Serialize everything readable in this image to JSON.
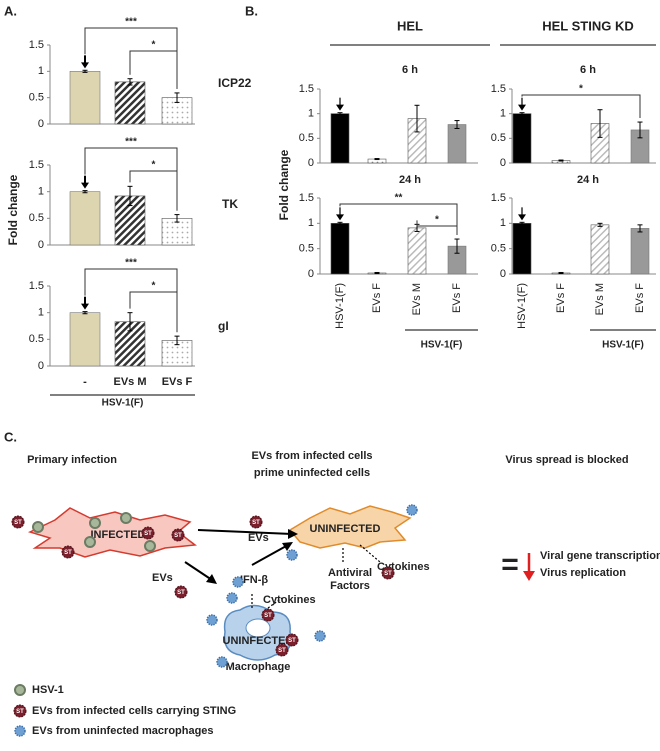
{
  "panel_labels": [
    "A.",
    "B.",
    "C."
  ],
  "column_titles": [
    "HEL",
    "HEL STING KD"
  ],
  "chart_data": [
    {
      "type": "bar",
      "side_label": "ICP22",
      "categories": [
        null,
        null,
        null
      ],
      "values": [
        1,
        0.8,
        0.5
      ],
      "errors": [
        0.02,
        0.06,
        0.09
      ],
      "colors": [
        "#ddd5b0",
        "#333333",
        "#aaaaaa"
      ],
      "fills": [
        "solid",
        "hatch",
        "dots"
      ],
      "ylim": [
        0,
        1.5
      ],
      "yticks": [
        0,
        0.5,
        1,
        1.5
      ],
      "brackets": [
        "***",
        "*"
      ]
    },
    {
      "type": "bar",
      "side_label": "TK",
      "ylabel": "Fold change",
      "categories": [
        null,
        null,
        null
      ],
      "values": [
        1,
        0.92,
        0.5
      ],
      "errors": [
        0.02,
        0.18,
        0.07
      ],
      "colors": [
        "#ddd5b0",
        "#333333",
        "#aaaaaa"
      ],
      "fills": [
        "solid",
        "hatch",
        "dots"
      ],
      "ylim": [
        0,
        1.5
      ],
      "yticks": [
        0,
        0.5,
        1,
        1.5
      ],
      "brackets": [
        "***",
        "*"
      ]
    },
    {
      "type": "bar",
      "side_label": "gI",
      "xlabel": "HSV-1(F)",
      "categories": [
        "-",
        "EVs M",
        "EVs F"
      ],
      "values": [
        1,
        0.83,
        0.48
      ],
      "errors": [
        0.02,
        0.17,
        0.08
      ],
      "colors": [
        "#ddd5b0",
        "#333333",
        "#aaaaaa"
      ],
      "fills": [
        "solid",
        "hatch",
        "dots"
      ],
      "ylim": [
        0,
        1.5
      ],
      "yticks": [
        0,
        0.5,
        1,
        1.5
      ],
      "brackets": [
        "***",
        "*"
      ]
    },
    {
      "type": "bar",
      "title": "6 h",
      "categories": [
        null,
        null,
        null,
        null
      ],
      "values": [
        1,
        0.08,
        0.9,
        0.78
      ],
      "errors": [
        0.02,
        0.01,
        0.27,
        0.08
      ],
      "colors": [
        "#000000",
        "#888888",
        "#bbbbbb",
        "#999999"
      ],
      "fills": [
        "solid",
        "dots",
        "hatch-light",
        "solid"
      ],
      "ylim": [
        0,
        1.5
      ],
      "yticks": [
        0,
        0.5,
        1,
        1.5
      ]
    },
    {
      "type": "bar",
      "title": "6 h",
      "categories": [
        null,
        null,
        null,
        null
      ],
      "values": [
        1,
        0.05,
        0.8,
        0.67
      ],
      "errors": [
        0.02,
        0.01,
        0.28,
        0.16
      ],
      "colors": [
        "#000000",
        "#888888",
        "#bbbbbb",
        "#999999"
      ],
      "fills": [
        "solid",
        "dots",
        "hatch-light",
        "solid"
      ],
      "ylim": [
        0,
        1.5
      ],
      "yticks": [
        0,
        0.5,
        1,
        1.5
      ],
      "brackets": [
        "*"
      ]
    },
    {
      "type": "bar",
      "title": "24 h",
      "ylabel": "Fold change",
      "xlabel": "HSV-1(F)",
      "categories": [
        "HSV-1(F)",
        "EVs F",
        "EVs M",
        "EVs F"
      ],
      "values": [
        1,
        0.02,
        0.91,
        0.55
      ],
      "errors": [
        0.02,
        0.01,
        0.07,
        0.14
      ],
      "colors": [
        "#000000",
        "#888888",
        "#bbbbbb",
        "#999999"
      ],
      "fills": [
        "solid",
        "dots",
        "hatch-light",
        "solid"
      ],
      "ylim": [
        0,
        1.5
      ],
      "yticks": [
        0,
        0.5,
        1,
        1.5
      ],
      "brackets": [
        "**",
        "*"
      ]
    },
    {
      "type": "bar",
      "title": "24 h",
      "xlabel": "HSV-1(F)",
      "categories": [
        "HSV-1(F)",
        "EVs F",
        "EVs M",
        "EVs F"
      ],
      "values": [
        1,
        0.02,
        0.97,
        0.9
      ],
      "errors": [
        0.02,
        0.01,
        0.03,
        0.07
      ],
      "colors": [
        "#000000",
        "#888888",
        "#bbbbbb",
        "#999999"
      ],
      "fills": [
        "solid",
        "dots",
        "hatch-light",
        "solid"
      ],
      "ylim": [
        0,
        1.5
      ],
      "yticks": [
        0,
        0.5,
        1,
        1.5
      ]
    }
  ],
  "diagram": {
    "headings": [
      "Primary infection",
      "EVs from infected cells",
      "prime uninfected cells",
      "Virus spread is blocked"
    ],
    "infected": "INFECTED",
    "uninfected": "UNINFECTED",
    "macrophage_cell": "UNINFECTED",
    "macrophage": "Macrophage",
    "evs": "EVs",
    "st": "ST",
    "ifn": "IFN-β",
    "cytokines": "Cytokines",
    "antiviral": [
      "Antiviral",
      "Factors"
    ],
    "equals": "=",
    "outcome": [
      "Viral gene transcription",
      "Virus replication"
    ],
    "legend": [
      "HSV-1",
      "EVs from infected cells carrying STING",
      "EVs from uninfected macrophages"
    ]
  }
}
